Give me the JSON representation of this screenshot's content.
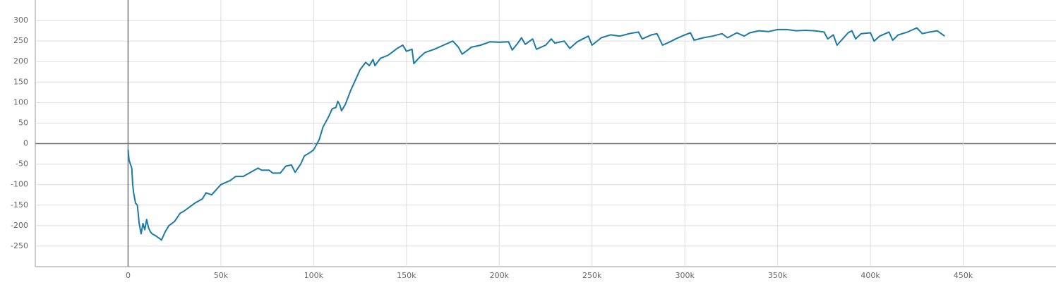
{
  "chart_data": {
    "type": "line",
    "x": [
      0,
      500,
      2000,
      2500,
      3000,
      4000,
      5000,
      6000,
      7000,
      8000,
      9000,
      10000,
      11000,
      12000,
      13000,
      15000,
      18000,
      20000,
      22000,
      25000,
      28000,
      30000,
      33000,
      36000,
      40000,
      42000,
      45000,
      47000,
      50000,
      55000,
      58000,
      62000,
      66000,
      70000,
      72000,
      76000,
      78000,
      82000,
      85000,
      88000,
      90000,
      93000,
      95000,
      98000,
      100000,
      103000,
      105000,
      108000,
      110000,
      112000,
      113000,
      114000,
      115000,
      117000,
      120000,
      122000,
      125000,
      128000,
      130000,
      132000,
      133000,
      136000,
      140000,
      143000,
      145000,
      148000,
      150000,
      153000,
      154000,
      157000,
      160000,
      165000,
      170000,
      175000,
      178000,
      180000,
      185000,
      190000,
      195000,
      200000,
      205000,
      207000,
      210000,
      212000,
      214000,
      218000,
      220000,
      225000,
      228000,
      230000,
      235000,
      238000,
      242000,
      245000,
      248000,
      250000,
      255000,
      260000,
      265000,
      270000,
      275000,
      277000,
      282000,
      285000,
      288000,
      292000,
      295000,
      300000,
      303000,
      305000,
      310000,
      315000,
      320000,
      323000,
      328000,
      332000,
      335000,
      340000,
      345000,
      350000,
      355000,
      360000,
      365000,
      370000,
      375000,
      377000,
      380000,
      382000,
      385000,
      388000,
      390000,
      392000,
      395000,
      400000,
      402000,
      405000,
      410000,
      412000,
      415000,
      420000,
      425000,
      428000,
      432000,
      436000,
      440000
    ],
    "series": [
      {
        "color": "#1a7aa8",
        "values": [
          -15,
          -40,
          -60,
          -100,
          -120,
          -145,
          -150,
          -195,
          -220,
          -195,
          -210,
          -185,
          -205,
          -215,
          -220,
          -225,
          -235,
          -215,
          -200,
          -190,
          -170,
          -165,
          -155,
          -145,
          -135,
          -120,
          -125,
          -115,
          -100,
          -90,
          -80,
          -80,
          -70,
          -60,
          -65,
          -65,
          -72,
          -72,
          -55,
          -52,
          -70,
          -50,
          -30,
          -22,
          -15,
          10,
          40,
          65,
          85,
          88,
          103,
          95,
          80,
          95,
          130,
          150,
          180,
          198,
          190,
          205,
          190,
          208,
          215,
          225,
          232,
          240,
          225,
          230,
          195,
          210,
          222,
          230,
          240,
          250,
          235,
          218,
          235,
          240,
          248,
          247,
          248,
          228,
          245,
          258,
          242,
          255,
          230,
          240,
          255,
          245,
          250,
          232,
          248,
          255,
          262,
          240,
          258,
          265,
          262,
          268,
          272,
          255,
          265,
          268,
          240,
          248,
          255,
          265,
          270,
          252,
          258,
          262,
          268,
          258,
          270,
          262,
          270,
          275,
          273,
          278,
          278,
          275,
          276,
          275,
          272,
          255,
          265,
          240,
          255,
          270,
          275,
          255,
          268,
          270,
          250,
          262,
          272,
          252,
          265,
          272,
          282,
          268,
          272,
          275,
          262
        ]
      }
    ],
    "xlim": [
      -50000,
      500000
    ],
    "xticks": [
      0,
      {
        "value": 50000,
        "label": "50k"
      },
      {
        "value": 100000,
        "label": "100k"
      },
      {
        "value": 150000,
        "label": "150k"
      },
      {
        "value": 200000,
        "label": "200k"
      },
      {
        "value": 250000,
        "label": "250k"
      },
      {
        "value": 300000,
        "label": "300k"
      },
      {
        "value": 350000,
        "label": "350k"
      },
      {
        "value": 400000,
        "label": "400k"
      },
      {
        "value": 450000,
        "label": "450k"
      }
    ],
    "ylim": [
      -300,
      350
    ],
    "yticks": [
      -250,
      -200,
      -150,
      -100,
      -50,
      0,
      50,
      100,
      150,
      200,
      250,
      300
    ],
    "grid": true
  }
}
